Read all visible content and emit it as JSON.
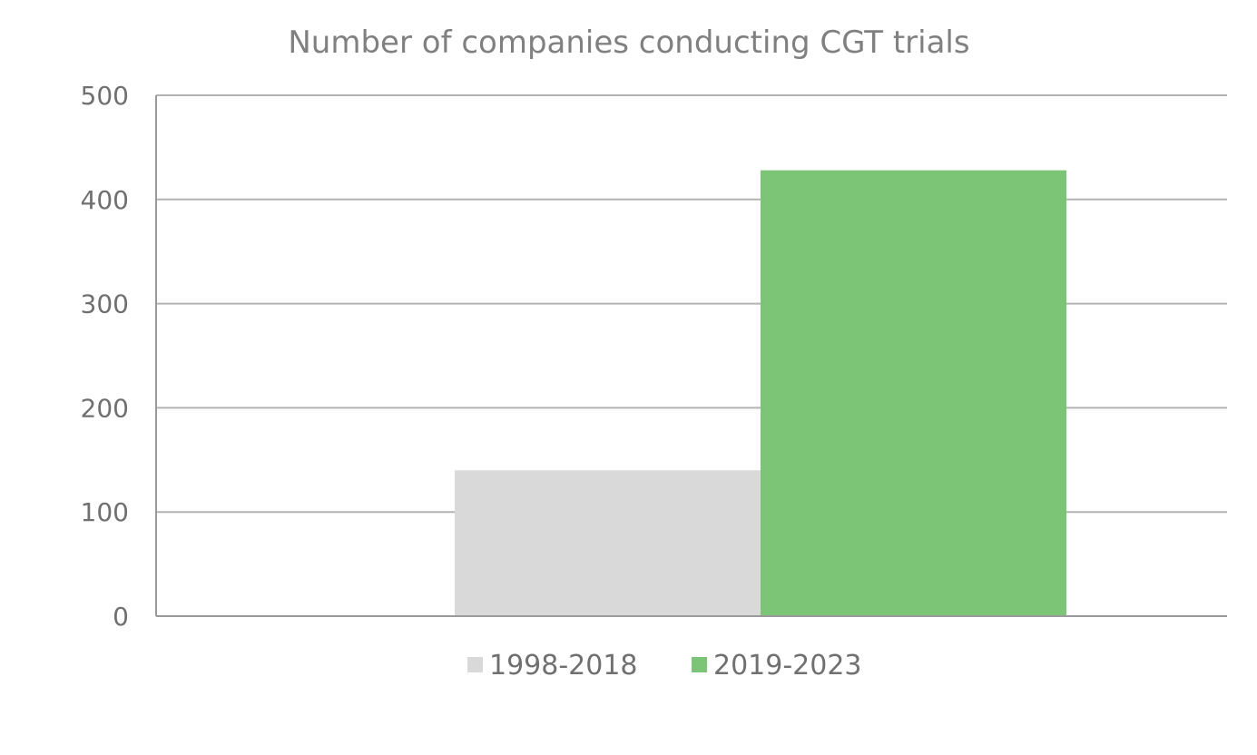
{
  "chart_data": {
    "type": "bar",
    "title": "Number of companies conducting CGT trials",
    "xlabel": "",
    "ylabel": "",
    "categories": [
      ""
    ],
    "series": [
      {
        "name": "1998-2018",
        "values": [
          140
        ],
        "color": "#d9d9d9"
      },
      {
        "name": "2019-2023",
        "values": [
          428
        ],
        "color": "#7dc576"
      }
    ],
    "ylim": [
      0,
      500
    ],
    "yticks": [
      0,
      100,
      200,
      300,
      400,
      500
    ],
    "ytick_labels": [
      "0",
      "100",
      "200",
      "300",
      "400",
      "500"
    ],
    "grid": true,
    "legend_position": "bottom",
    "colors": {
      "gridline": "#b3b3b3",
      "axis": "#9a9a9a",
      "text": "#808080"
    }
  }
}
